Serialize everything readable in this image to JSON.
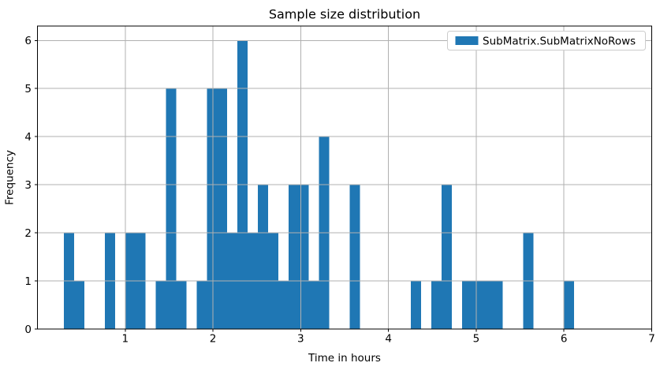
{
  "chart_data": {
    "type": "bar",
    "subtype": "histogram",
    "title": "Sample size distribution",
    "xlabel": "Time in hours",
    "ylabel": "Frequency",
    "xlim": [
      0,
      7
    ],
    "ylim": [
      0,
      6.3
    ],
    "xticks": [
      1,
      2,
      3,
      4,
      5,
      6,
      7
    ],
    "yticks": [
      0,
      1,
      2,
      3,
      4,
      5,
      6
    ],
    "grid": true,
    "grid_color": "#b0b0b0",
    "spine_color": "#000000",
    "legend_position": "upper right",
    "legend_border_color": "#cccccc",
    "legend_background": "#ffffff",
    "series": [
      {
        "name": "SubMatrix.SubMatrixNoRows",
        "color": "#1f77b4",
        "bin_start": 0.302,
        "bin_width": 0.1163,
        "counts": [
          2,
          1,
          0,
          0,
          2,
          0,
          2,
          2,
          0,
          1,
          5,
          1,
          0,
          1,
          5,
          5,
          2,
          6,
          2,
          3,
          2,
          1,
          3,
          3,
          1,
          4,
          0,
          0,
          3,
          0,
          0,
          0,
          0,
          0,
          1,
          0,
          1,
          3,
          0,
          1,
          1,
          1,
          1,
          0,
          0,
          2,
          0,
          0,
          0,
          1
        ]
      }
    ]
  }
}
